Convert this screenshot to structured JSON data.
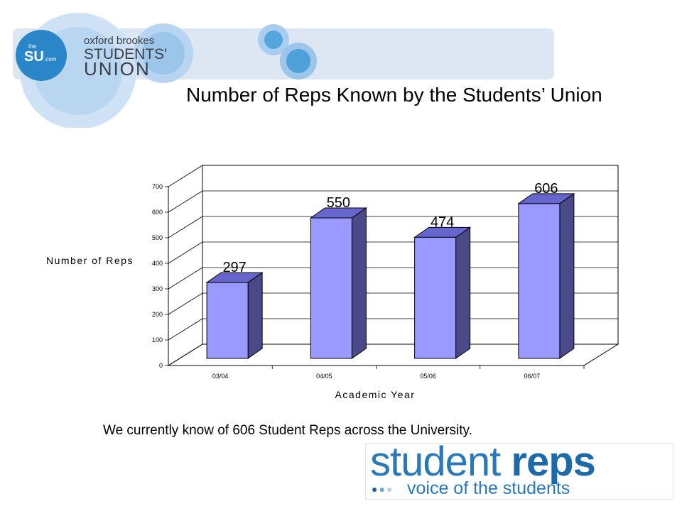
{
  "header": {
    "logo_small_top": "the",
    "logo_small_main": "SU",
    "logo_small_suffix": ".com",
    "logo_line1": "oxford brookes",
    "logo_line2": "STUDENTS'",
    "logo_line3": "UNION"
  },
  "title": "Number of Reps Known by the Students’ Union",
  "chart_data": {
    "type": "bar",
    "categories": [
      "03/04",
      "04/05",
      "05/06",
      "06/07"
    ],
    "values": [
      297,
      550,
      474,
      606
    ],
    "data_labels": [
      "297",
      "550",
      "474",
      "606"
    ],
    "xlabel": "Academic Year",
    "ylabel": "Number of Reps",
    "ylim": [
      0,
      700
    ],
    "yticks": [
      "0",
      "100",
      "200",
      "300",
      "400",
      "500",
      "600",
      "700"
    ],
    "grid": true,
    "style": "3d-column",
    "colors": {
      "bar_front": "#9999ff",
      "bar_side": "#4a4a8a",
      "bar_top": "#6666cc"
    }
  },
  "caption": "We currently know of 606 Student Reps across the University.",
  "banner": {
    "word1": "student",
    "word2": "reps",
    "dots": "●●●",
    "tagline": "voice of the students"
  },
  "colors": {
    "header_bar": "#dde6f3",
    "circle_light": "#c9def3",
    "circle_mid": "#9fc6ea",
    "circle_dark": "#49a0d9",
    "brand_blue": "#2a78b7"
  }
}
